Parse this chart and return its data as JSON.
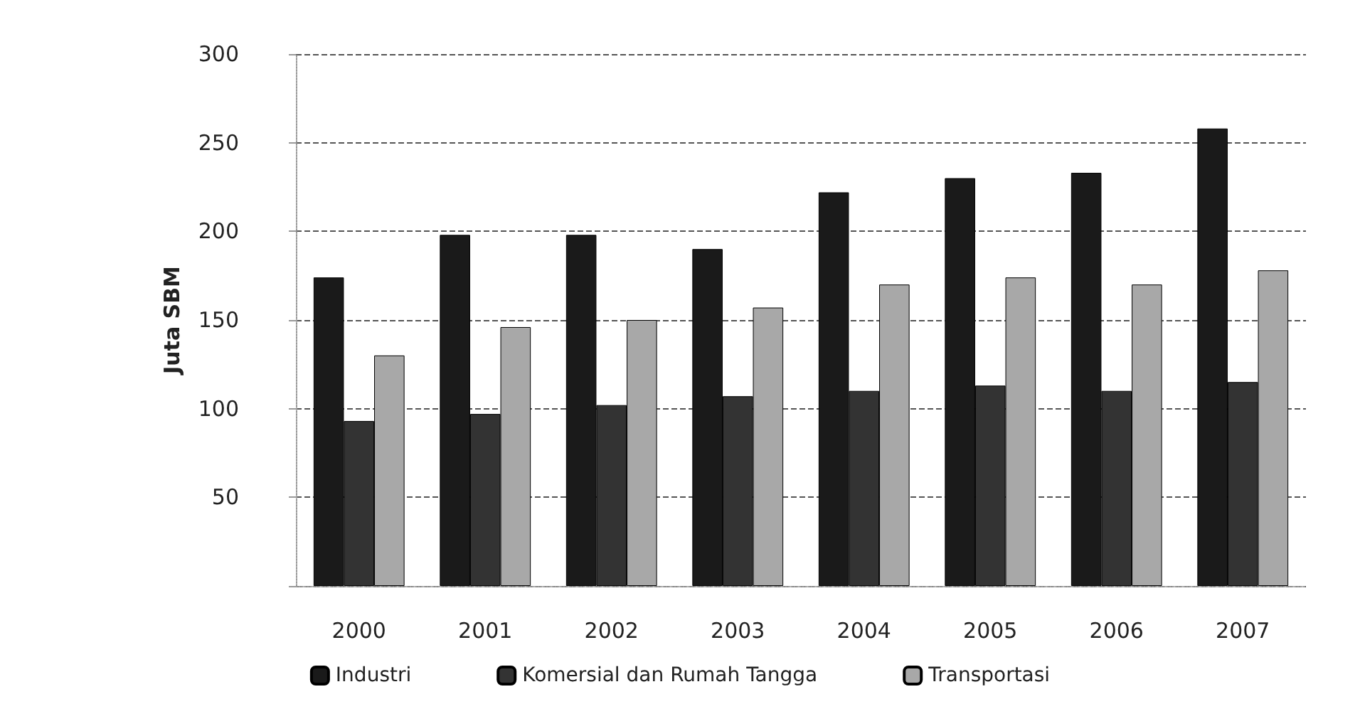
{
  "chart_data": {
    "type": "bar",
    "ylabel": "Juta SBM",
    "categories": [
      "2000",
      "2001",
      "2002",
      "2003",
      "2004",
      "2005",
      "2006",
      "2007"
    ],
    "series": [
      {
        "name": "Industri",
        "color": "#1a1a1a",
        "values": [
          174,
          198,
          198,
          190,
          222,
          230,
          233,
          258
        ]
      },
      {
        "name": "Komersial dan Rumah Tangga",
        "color": "#333333",
        "values": [
          93,
          97,
          102,
          107,
          110,
          113,
          110,
          115
        ]
      },
      {
        "name": "Transportasi",
        "color": "#a8a8a8",
        "values": [
          130,
          146,
          150,
          157,
          170,
          174,
          170,
          178
        ]
      }
    ],
    "ylim": [
      0,
      300
    ],
    "yticks": [
      {
        "value": 0,
        "label": null
      },
      50,
      100,
      150,
      200,
      250,
      300
    ],
    "grid": "y",
    "legend": "bottom",
    "line_style": "dashed"
  }
}
